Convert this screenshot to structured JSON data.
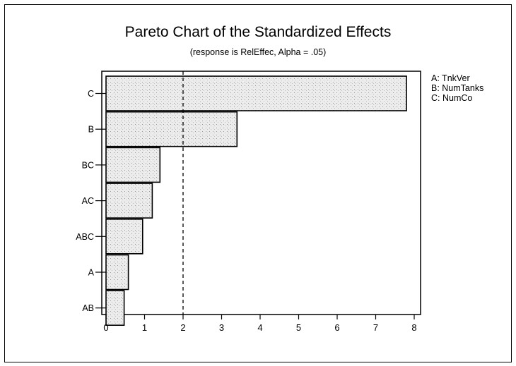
{
  "chart_data": {
    "type": "bar",
    "orientation": "horizontal",
    "title": "Pareto Chart of the Standardized Effects",
    "subtitle": "(response is RelEffec, Alpha = .05)",
    "categories": [
      "C",
      "B",
      "BC",
      "AC",
      "ABC",
      "A",
      "AB"
    ],
    "values": [
      7.8,
      3.4,
      1.4,
      1.2,
      0.95,
      0.58,
      0.47
    ],
    "reference_line": 2,
    "xlim": [
      0,
      8
    ],
    "xticks": [
      "0",
      "1",
      "2",
      "3",
      "4",
      "5",
      "6",
      "7",
      "8"
    ],
    "legend_position": "top-right",
    "legend": [
      "A: TnkVer",
      "B: NumTanks",
      "C: NumCo"
    ],
    "bar_fill": "#e6e6e6",
    "bar_stroke": "#000000"
  }
}
